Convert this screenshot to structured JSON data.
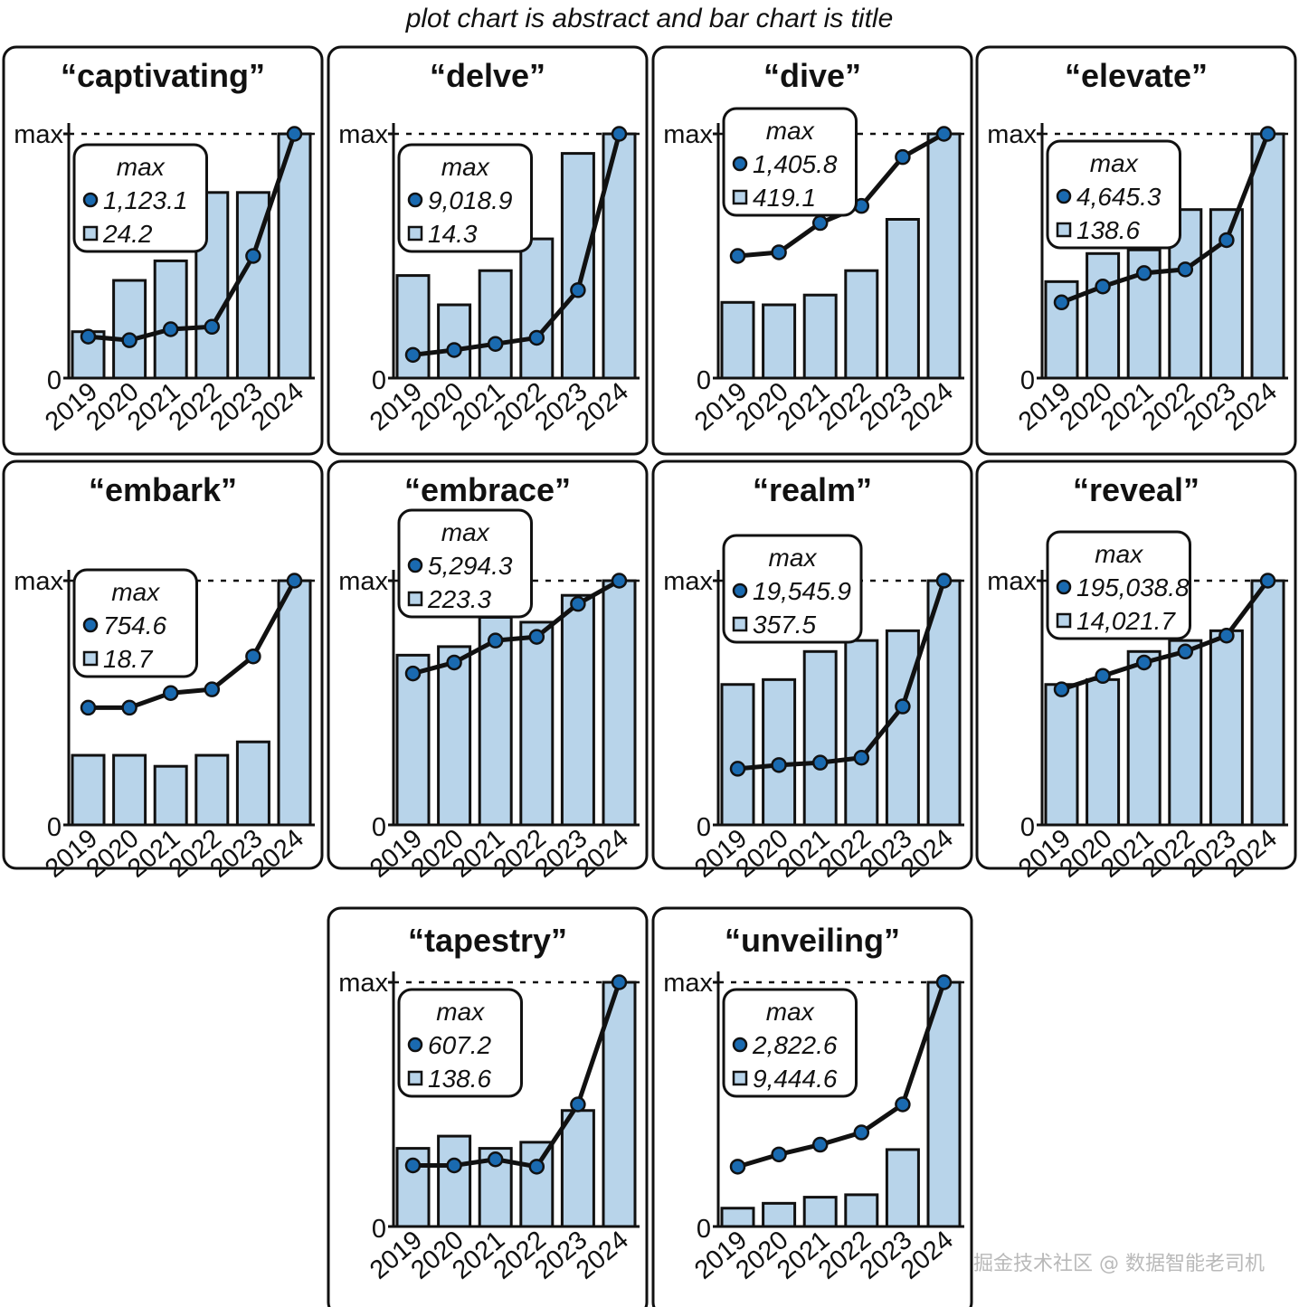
{
  "figure_title": "plot chart is abstract and bar chart is title",
  "watermark": "掘金技术社区 @ 数据智能老司机",
  "colors": {
    "bar": "#b8d4ea",
    "dot": "#1a6ab0",
    "line": "#111111"
  },
  "chart_data": [
    {
      "type": "bar+line",
      "title": "“captivating”",
      "categories": [
        "2019",
        "2020",
        "2021",
        "2022",
        "2023",
        "2024"
      ],
      "ylabel_top": "max",
      "ylabel_bottom": "0",
      "ylim": [
        0,
        1
      ],
      "line_values": [
        0.17,
        0.155,
        0.2,
        0.21,
        0.5,
        1.0
      ],
      "bar_values": [
        0.19,
        0.4,
        0.48,
        0.76,
        0.76,
        1.0
      ],
      "legend": {
        "header": "max",
        "line_max": "1,123.1",
        "bar_max": "24.2"
      }
    },
    {
      "type": "bar+line",
      "title": "“delve”",
      "categories": [
        "2019",
        "2020",
        "2021",
        "2022",
        "2023",
        "2024"
      ],
      "ylabel_top": "max",
      "ylabel_bottom": "0",
      "ylim": [
        0,
        1
      ],
      "line_values": [
        0.095,
        0.115,
        0.14,
        0.165,
        0.36,
        1.0
      ],
      "bar_values": [
        0.42,
        0.3,
        0.44,
        0.57,
        0.92,
        1.0
      ],
      "legend": {
        "header": "max",
        "line_max": "9,018.9",
        "bar_max": "14.3"
      }
    },
    {
      "type": "bar+line",
      "title": "“dive”",
      "categories": [
        "2019",
        "2020",
        "2021",
        "2022",
        "2023",
        "2024"
      ],
      "ylabel_top": "max",
      "ylabel_bottom": "0",
      "ylim": [
        0,
        1
      ],
      "line_values": [
        0.5,
        0.515,
        0.635,
        0.705,
        0.905,
        1.0
      ],
      "bar_values": [
        0.31,
        0.3,
        0.34,
        0.44,
        0.65,
        1.0
      ],
      "legend": {
        "header": "max",
        "line_max": "1,405.8",
        "bar_max": "419.1"
      }
    },
    {
      "type": "bar+line",
      "title": "“elevate”",
      "categories": [
        "2019",
        "2020",
        "2021",
        "2022",
        "2023",
        "2024"
      ],
      "ylabel_top": "max",
      "ylabel_bottom": "0",
      "ylim": [
        0,
        1
      ],
      "line_values": [
        0.31,
        0.375,
        0.43,
        0.445,
        0.565,
        1.0
      ],
      "bar_values": [
        0.395,
        0.51,
        0.525,
        0.69,
        0.69,
        1.0
      ],
      "legend": {
        "header": "max",
        "line_max": "4,645.3",
        "bar_max": "138.6"
      }
    },
    {
      "type": "bar+line",
      "title": "“embark”",
      "categories": [
        "2019",
        "2020",
        "2021",
        "2022",
        "2023",
        "2024"
      ],
      "ylabel_top": "max",
      "ylabel_bottom": "0",
      "ylim": [
        0,
        1
      ],
      "line_values": [
        0.48,
        0.48,
        0.54,
        0.555,
        0.69,
        1.0
      ],
      "bar_values": [
        0.285,
        0.285,
        0.24,
        0.285,
        0.34,
        1.0
      ],
      "legend": {
        "header": "max",
        "line_max": "754.6",
        "bar_max": "18.7"
      }
    },
    {
      "type": "bar+line",
      "title": "“embrace”",
      "categories": [
        "2019",
        "2020",
        "2021",
        "2022",
        "2023",
        "2024"
      ],
      "ylabel_top": "max",
      "ylabel_bottom": "0",
      "ylim": [
        0,
        1
      ],
      "line_values": [
        0.62,
        0.665,
        0.755,
        0.77,
        0.905,
        1.0
      ],
      "bar_values": [
        0.695,
        0.73,
        0.85,
        0.83,
        0.94,
        1.0
      ],
      "legend": {
        "header": "max",
        "line_max": "5,294.3",
        "bar_max": "223.3"
      }
    },
    {
      "type": "bar+line",
      "title": "“realm”",
      "categories": [
        "2019",
        "2020",
        "2021",
        "2022",
        "2023",
        "2024"
      ],
      "ylabel_top": "max",
      "ylabel_bottom": "0",
      "ylim": [
        0,
        1
      ],
      "line_values": [
        0.23,
        0.245,
        0.255,
        0.275,
        0.485,
        1.0
      ],
      "bar_values": [
        0.575,
        0.595,
        0.71,
        0.755,
        0.795,
        1.0
      ],
      "legend": {
        "header": "max",
        "line_max": "19,545.9",
        "bar_max": "357.5"
      }
    },
    {
      "type": "bar+line",
      "title": "“reveal”",
      "categories": [
        "2019",
        "2020",
        "2021",
        "2022",
        "2023",
        "2024"
      ],
      "ylabel_top": "max",
      "ylabel_bottom": "0",
      "ylim": [
        0,
        1
      ],
      "line_values": [
        0.555,
        0.61,
        0.665,
        0.71,
        0.775,
        1.0
      ],
      "bar_values": [
        0.575,
        0.595,
        0.71,
        0.755,
        0.795,
        1.0
      ],
      "legend": {
        "header": "max",
        "line_max": "195,038.8",
        "bar_max": "14,021.7"
      }
    },
    {
      "type": "bar+line",
      "title": "“tapestry”",
      "categories": [
        "2019",
        "2020",
        "2021",
        "2022",
        "2023",
        "2024"
      ],
      "ylabel_top": "max",
      "ylabel_bottom": "0",
      "ylim": [
        0,
        1
      ],
      "line_values": [
        0.25,
        0.25,
        0.275,
        0.245,
        0.5,
        1.0
      ],
      "bar_values": [
        0.32,
        0.37,
        0.32,
        0.345,
        0.475,
        1.0
      ],
      "legend": {
        "header": "max",
        "line_max": "607.2",
        "bar_max": "138.6"
      }
    },
    {
      "type": "bar+line",
      "title": "“unveiling”",
      "categories": [
        "2019",
        "2020",
        "2021",
        "2022",
        "2023",
        "2024"
      ],
      "ylabel_top": "max",
      "ylabel_bottom": "0",
      "ylim": [
        0,
        1
      ],
      "line_values": [
        0.245,
        0.295,
        0.335,
        0.385,
        0.5,
        1.0
      ],
      "bar_values": [
        0.075,
        0.095,
        0.12,
        0.13,
        0.315,
        1.0
      ],
      "legend": {
        "header": "max",
        "line_max": "2,822.6",
        "bar_max": "9,444.6"
      }
    }
  ]
}
